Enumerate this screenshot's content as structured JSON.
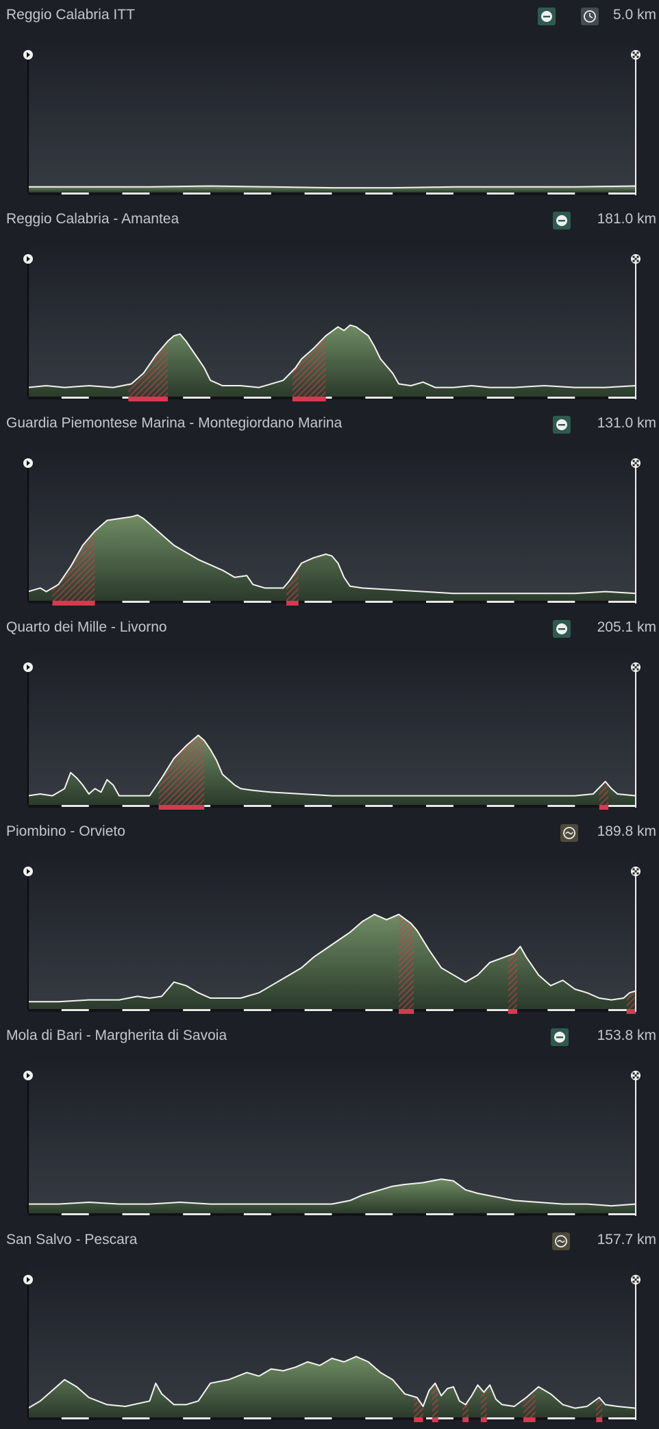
{
  "colors": {
    "background": "#1c1f26",
    "terrain": "#5e7a55",
    "outline": "#f4f4f0",
    "climb": "#d63a4f",
    "flat_icon": "#2e5a4f",
    "hilly_icon": "#4d4a3a",
    "itt_icon": "#434a52"
  },
  "stages": [
    {
      "title": "Reggio Calabria ITT",
      "distance": "5.0 km",
      "type_icon": "flat-stage-icon",
      "extra_icon": "stopwatch-icon",
      "y_peak": 0.02,
      "profile": [
        [
          0,
          0.02
        ],
        [
          0.1,
          0.02
        ],
        [
          0.2,
          0.02
        ],
        [
          0.3,
          0.025
        ],
        [
          0.4,
          0.02
        ],
        [
          0.5,
          0.015
        ],
        [
          0.6,
          0.015
        ],
        [
          0.7,
          0.02
        ],
        [
          0.8,
          0.02
        ],
        [
          0.9,
          0.02
        ],
        [
          1,
          0.025
        ]
      ],
      "climbs": []
    },
    {
      "title": "Reggio Calabria - Amantea",
      "distance": "181.0 km",
      "type_icon": "flat-stage-icon",
      "extra_icon": "",
      "y_peak": 0.35,
      "profile": [
        [
          0,
          0.04
        ],
        [
          0.03,
          0.05
        ],
        [
          0.06,
          0.04
        ],
        [
          0.1,
          0.05
        ],
        [
          0.14,
          0.04
        ],
        [
          0.17,
          0.06
        ],
        [
          0.19,
          0.12
        ],
        [
          0.21,
          0.22
        ],
        [
          0.23,
          0.3
        ],
        [
          0.24,
          0.33
        ],
        [
          0.25,
          0.34
        ],
        [
          0.26,
          0.3
        ],
        [
          0.27,
          0.25
        ],
        [
          0.28,
          0.2
        ],
        [
          0.29,
          0.15
        ],
        [
          0.3,
          0.08
        ],
        [
          0.32,
          0.05
        ],
        [
          0.35,
          0.05
        ],
        [
          0.38,
          0.04
        ],
        [
          0.4,
          0.06
        ],
        [
          0.42,
          0.08
        ],
        [
          0.44,
          0.15
        ],
        [
          0.45,
          0.2
        ],
        [
          0.47,
          0.26
        ],
        [
          0.49,
          0.33
        ],
        [
          0.51,
          0.38
        ],
        [
          0.52,
          0.36
        ],
        [
          0.53,
          0.39
        ],
        [
          0.54,
          0.38
        ],
        [
          0.56,
          0.33
        ],
        [
          0.57,
          0.27
        ],
        [
          0.58,
          0.2
        ],
        [
          0.6,
          0.12
        ],
        [
          0.61,
          0.06
        ],
        [
          0.63,
          0.05
        ],
        [
          0.65,
          0.07
        ],
        [
          0.67,
          0.04
        ],
        [
          0.7,
          0.04
        ],
        [
          0.73,
          0.05
        ],
        [
          0.76,
          0.04
        ],
        [
          0.8,
          0.04
        ],
        [
          0.85,
          0.05
        ],
        [
          0.9,
          0.04
        ],
        [
          0.95,
          0.04
        ],
        [
          1,
          0.05
        ]
      ],
      "climbs": [
        [
          0.165,
          0.23
        ],
        [
          0.435,
          0.49
        ]
      ]
    },
    {
      "title": "Guardia Piemontese Marina - Montegiordano Marina",
      "distance": "131.0 km",
      "type_icon": "flat-stage-icon",
      "extra_icon": "",
      "y_peak": 0.45,
      "profile": [
        [
          0,
          0.04
        ],
        [
          0.02,
          0.06
        ],
        [
          0.03,
          0.04
        ],
        [
          0.05,
          0.08
        ],
        [
          0.07,
          0.18
        ],
        [
          0.09,
          0.3
        ],
        [
          0.11,
          0.38
        ],
        [
          0.13,
          0.44
        ],
        [
          0.15,
          0.45
        ],
        [
          0.17,
          0.46
        ],
        [
          0.18,
          0.47
        ],
        [
          0.19,
          0.45
        ],
        [
          0.2,
          0.42
        ],
        [
          0.22,
          0.36
        ],
        [
          0.24,
          0.3
        ],
        [
          0.26,
          0.26
        ],
        [
          0.28,
          0.22
        ],
        [
          0.3,
          0.19
        ],
        [
          0.32,
          0.16
        ],
        [
          0.34,
          0.12
        ],
        [
          0.36,
          0.13
        ],
        [
          0.37,
          0.08
        ],
        [
          0.39,
          0.06
        ],
        [
          0.42,
          0.06
        ],
        [
          0.43,
          0.1
        ],
        [
          0.45,
          0.2
        ],
        [
          0.47,
          0.23
        ],
        [
          0.49,
          0.25
        ],
        [
          0.5,
          0.24
        ],
        [
          0.51,
          0.2
        ],
        [
          0.52,
          0.12
        ],
        [
          0.53,
          0.07
        ],
        [
          0.55,
          0.06
        ],
        [
          0.6,
          0.05
        ],
        [
          0.65,
          0.04
        ],
        [
          0.7,
          0.03
        ],
        [
          0.75,
          0.03
        ],
        [
          0.8,
          0.03
        ],
        [
          0.85,
          0.03
        ],
        [
          0.9,
          0.03
        ],
        [
          0.95,
          0.04
        ],
        [
          1,
          0.03
        ]
      ],
      "climbs": [
        [
          0.04,
          0.11
        ],
        [
          0.425,
          0.445
        ]
      ]
    },
    {
      "title": "Quarto dei Mille - Livorno",
      "distance": "205.1 km",
      "type_icon": "flat-stage-icon",
      "extra_icon": "",
      "y_peak": 0.38,
      "profile": [
        [
          0,
          0.04
        ],
        [
          0.02,
          0.05
        ],
        [
          0.04,
          0.04
        ],
        [
          0.06,
          0.08
        ],
        [
          0.07,
          0.17
        ],
        [
          0.08,
          0.14
        ],
        [
          0.09,
          0.1
        ],
        [
          0.1,
          0.05
        ],
        [
          0.11,
          0.08
        ],
        [
          0.12,
          0.06
        ],
        [
          0.13,
          0.13
        ],
        [
          0.14,
          0.1
        ],
        [
          0.15,
          0.04
        ],
        [
          0.2,
          0.04
        ],
        [
          0.22,
          0.14
        ],
        [
          0.24,
          0.25
        ],
        [
          0.26,
          0.32
        ],
        [
          0.28,
          0.38
        ],
        [
          0.29,
          0.35
        ],
        [
          0.3,
          0.3
        ],
        [
          0.31,
          0.24
        ],
        [
          0.32,
          0.16
        ],
        [
          0.34,
          0.1
        ],
        [
          0.35,
          0.08
        ],
        [
          0.37,
          0.07
        ],
        [
          0.4,
          0.06
        ],
        [
          0.45,
          0.05
        ],
        [
          0.5,
          0.04
        ],
        [
          0.55,
          0.04
        ],
        [
          0.6,
          0.04
        ],
        [
          0.7,
          0.04
        ],
        [
          0.8,
          0.04
        ],
        [
          0.9,
          0.04
        ],
        [
          0.93,
          0.05
        ],
        [
          0.95,
          0.12
        ],
        [
          0.96,
          0.08
        ],
        [
          0.97,
          0.05
        ],
        [
          1,
          0.04
        ]
      ],
      "climbs": [
        [
          0.215,
          0.29
        ],
        [
          0.94,
          0.955
        ]
      ]
    },
    {
      "title": "Piombino - Orvieto",
      "distance": "189.8 km",
      "type_icon": "hilly-stage-icon",
      "extra_icon": "",
      "y_peak": 0.57,
      "profile": [
        [
          0,
          0.03
        ],
        [
          0.05,
          0.03
        ],
        [
          0.1,
          0.04
        ],
        [
          0.15,
          0.04
        ],
        [
          0.18,
          0.06
        ],
        [
          0.2,
          0.05
        ],
        [
          0.22,
          0.06
        ],
        [
          0.24,
          0.14
        ],
        [
          0.26,
          0.12
        ],
        [
          0.28,
          0.08
        ],
        [
          0.3,
          0.05
        ],
        [
          0.35,
          0.05
        ],
        [
          0.38,
          0.08
        ],
        [
          0.4,
          0.12
        ],
        [
          0.43,
          0.18
        ],
        [
          0.45,
          0.22
        ],
        [
          0.47,
          0.28
        ],
        [
          0.5,
          0.35
        ],
        [
          0.53,
          0.42
        ],
        [
          0.55,
          0.48
        ],
        [
          0.57,
          0.52
        ],
        [
          0.59,
          0.49
        ],
        [
          0.61,
          0.52
        ],
        [
          0.63,
          0.47
        ],
        [
          0.64,
          0.43
        ],
        [
          0.66,
          0.32
        ],
        [
          0.68,
          0.22
        ],
        [
          0.7,
          0.18
        ],
        [
          0.72,
          0.14
        ],
        [
          0.74,
          0.18
        ],
        [
          0.76,
          0.25
        ],
        [
          0.8,
          0.3
        ],
        [
          0.81,
          0.34
        ],
        [
          0.82,
          0.28
        ],
        [
          0.84,
          0.18
        ],
        [
          0.86,
          0.12
        ],
        [
          0.88,
          0.15
        ],
        [
          0.9,
          0.1
        ],
        [
          0.92,
          0.08
        ],
        [
          0.94,
          0.05
        ],
        [
          0.96,
          0.04
        ],
        [
          0.98,
          0.05
        ],
        [
          0.99,
          0.08
        ],
        [
          1,
          0.09
        ]
      ],
      "climbs": [
        [
          0.61,
          0.635
        ],
        [
          0.79,
          0.805
        ],
        [
          0.985,
          1
        ]
      ]
    },
    {
      "title": "Mola di Bari - Margherita di Savoia",
      "distance": "153.8 km",
      "type_icon": "flat-stage-icon",
      "extra_icon": "",
      "y_peak": 0.2,
      "profile": [
        [
          0,
          0.04
        ],
        [
          0.05,
          0.04
        ],
        [
          0.1,
          0.05
        ],
        [
          0.15,
          0.04
        ],
        [
          0.2,
          0.04
        ],
        [
          0.25,
          0.05
        ],
        [
          0.3,
          0.04
        ],
        [
          0.35,
          0.04
        ],
        [
          0.4,
          0.04
        ],
        [
          0.45,
          0.04
        ],
        [
          0.5,
          0.04
        ],
        [
          0.53,
          0.06
        ],
        [
          0.55,
          0.09
        ],
        [
          0.58,
          0.12
        ],
        [
          0.6,
          0.14
        ],
        [
          0.62,
          0.15
        ],
        [
          0.65,
          0.16
        ],
        [
          0.68,
          0.18
        ],
        [
          0.7,
          0.17
        ],
        [
          0.72,
          0.12
        ],
        [
          0.74,
          0.1
        ],
        [
          0.77,
          0.08
        ],
        [
          0.8,
          0.06
        ],
        [
          0.84,
          0.05
        ],
        [
          0.88,
          0.04
        ],
        [
          0.92,
          0.04
        ],
        [
          0.96,
          0.03
        ],
        [
          1,
          0.04
        ]
      ],
      "climbs": []
    },
    {
      "title": "San Salvo - Pescara",
      "distance": "157.7 km",
      "type_icon": "hilly-stage-icon",
      "extra_icon": "",
      "y_peak": 0.35,
      "profile": [
        [
          0,
          0.04
        ],
        [
          0.02,
          0.08
        ],
        [
          0.04,
          0.14
        ],
        [
          0.06,
          0.2
        ],
        [
          0.08,
          0.16
        ],
        [
          0.1,
          0.1
        ],
        [
          0.13,
          0.06
        ],
        [
          0.16,
          0.05
        ],
        [
          0.2,
          0.08
        ],
        [
          0.21,
          0.18
        ],
        [
          0.22,
          0.12
        ],
        [
          0.24,
          0.06
        ],
        [
          0.26,
          0.06
        ],
        [
          0.28,
          0.08
        ],
        [
          0.3,
          0.18
        ],
        [
          0.33,
          0.2
        ],
        [
          0.36,
          0.24
        ],
        [
          0.38,
          0.22
        ],
        [
          0.4,
          0.26
        ],
        [
          0.42,
          0.25
        ],
        [
          0.44,
          0.27
        ],
        [
          0.46,
          0.3
        ],
        [
          0.48,
          0.28
        ],
        [
          0.5,
          0.32
        ],
        [
          0.52,
          0.3
        ],
        [
          0.54,
          0.33
        ],
        [
          0.56,
          0.3
        ],
        [
          0.58,
          0.24
        ],
        [
          0.6,
          0.2
        ],
        [
          0.62,
          0.12
        ],
        [
          0.64,
          0.1
        ],
        [
          0.65,
          0.05
        ],
        [
          0.66,
          0.14
        ],
        [
          0.67,
          0.18
        ],
        [
          0.68,
          0.11
        ],
        [
          0.69,
          0.15
        ],
        [
          0.7,
          0.16
        ],
        [
          0.71,
          0.08
        ],
        [
          0.72,
          0.06
        ],
        [
          0.73,
          0.11
        ],
        [
          0.74,
          0.17
        ],
        [
          0.75,
          0.13
        ],
        [
          0.76,
          0.17
        ],
        [
          0.77,
          0.09
        ],
        [
          0.78,
          0.06
        ],
        [
          0.8,
          0.05
        ],
        [
          0.82,
          0.1
        ],
        [
          0.84,
          0.16
        ],
        [
          0.86,
          0.12
        ],
        [
          0.88,
          0.06
        ],
        [
          0.9,
          0.04
        ],
        [
          0.92,
          0.05
        ],
        [
          0.94,
          0.1
        ],
        [
          0.95,
          0.06
        ],
        [
          0.97,
          0.05
        ],
        [
          1,
          0.04
        ]
      ],
      "climbs": [
        [
          0.635,
          0.65
        ],
        [
          0.665,
          0.675
        ],
        [
          0.715,
          0.725
        ],
        [
          0.745,
          0.755
        ],
        [
          0.815,
          0.835
        ],
        [
          0.935,
          0.945
        ]
      ]
    }
  ]
}
